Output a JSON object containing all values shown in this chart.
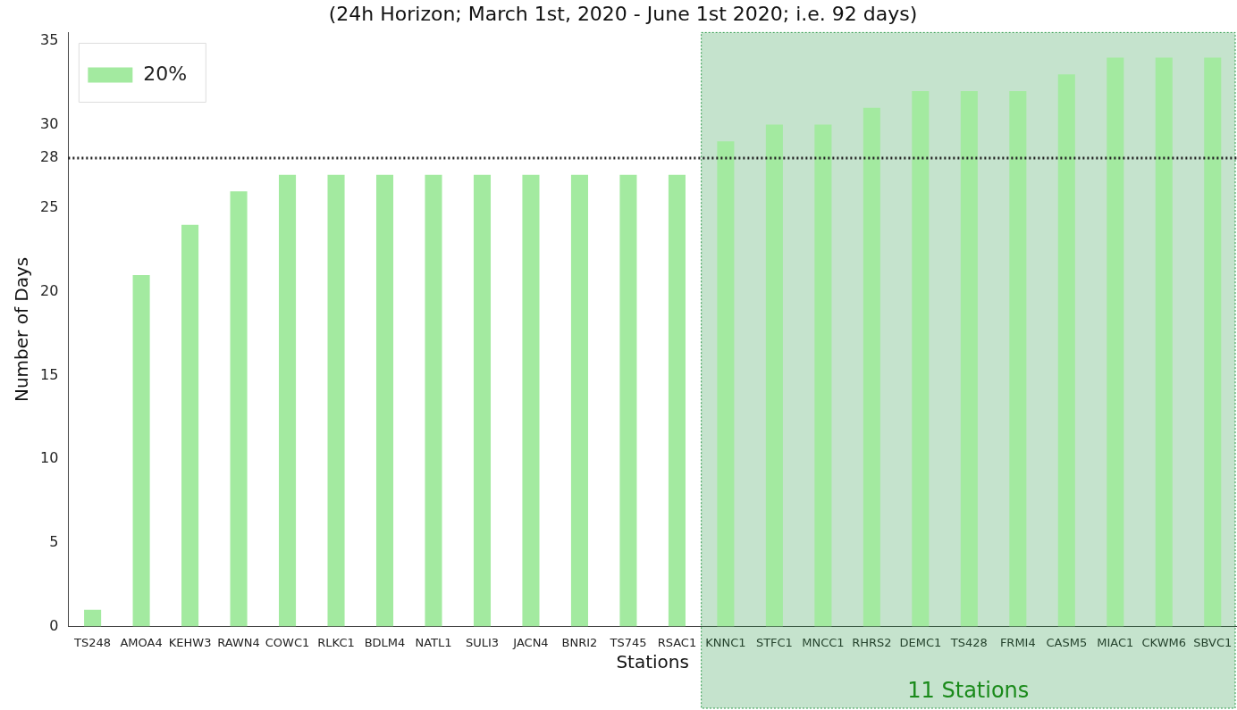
{
  "chart_data": {
    "type": "bar",
    "title": "(24h Horizon; March 1st, 2020 - June 1st 2020; i.e. 92 days)",
    "xlabel": "Stations",
    "ylabel": "Number of Days",
    "categories": [
      "TS248",
      "AMOA4",
      "KEHW3",
      "RAWN4",
      "COWC1",
      "RLKC1",
      "BDLM4",
      "NATL1",
      "SULI3",
      "JACN4",
      "BNRI2",
      "TS745",
      "RSAC1",
      "KNNC1",
      "STFC1",
      "MNCC1",
      "RHRS2",
      "DEMC1",
      "TS428",
      "FRMI4",
      "CASM5",
      "MIAC1",
      "CKWM6",
      "SBVC1"
    ],
    "series": [
      {
        "name": "20%",
        "color": "#a3eaa0",
        "values": [
          1,
          21,
          24,
          26,
          27,
          27,
          27,
          27,
          27,
          27,
          27,
          27,
          27,
          29,
          30,
          30,
          31,
          32,
          32,
          32,
          33,
          34,
          34,
          34
        ]
      }
    ],
    "ylim": [
      0,
      35.5
    ],
    "yticks": [
      0,
      5,
      10,
      15,
      20,
      25,
      28,
      30,
      35
    ],
    "ref_lines": [
      {
        "axis": "y",
        "value": 28,
        "color": "#222222",
        "line_style": "dotted"
      }
    ],
    "bands": [
      {
        "axis": "x",
        "from": "KNNC1",
        "to": "SBVC1",
        "label": "11 Stations",
        "color": "#2e9a4a"
      }
    ],
    "legend": "top left",
    "grid": false
  }
}
